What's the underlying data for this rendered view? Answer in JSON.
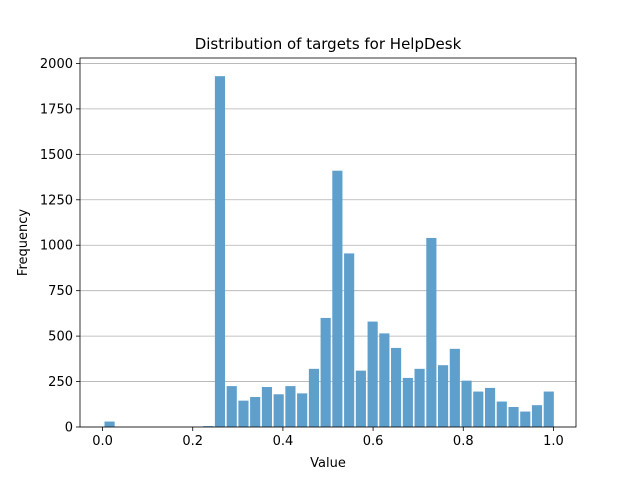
{
  "chart_data": {
    "type": "bar",
    "title": "Distribution of targets for HelpDesk",
    "xlabel": "Value",
    "ylabel": "Frequency",
    "xlim": [
      -0.05,
      1.05
    ],
    "ylim": [
      0,
      2030
    ],
    "x_ticks": [
      0.0,
      0.2,
      0.4,
      0.6,
      0.8,
      1.0
    ],
    "x_tick_labels": [
      "0.0",
      "0.2",
      "0.4",
      "0.6",
      "0.8",
      "1.0"
    ],
    "y_ticks": [
      0,
      250,
      500,
      750,
      1000,
      1250,
      1500,
      1750,
      2000
    ],
    "y_tick_labels": [
      "0",
      "250",
      "500",
      "750",
      "1000",
      "1250",
      "1500",
      "1750",
      "2000"
    ],
    "grid": "y-axis only",
    "bar_width": 0.0225,
    "bar_color": "#5f9fcc",
    "x": [
      0.0156,
      0.2344,
      0.2604,
      0.2865,
      0.3125,
      0.3385,
      0.3646,
      0.3906,
      0.4167,
      0.4427,
      0.4688,
      0.4948,
      0.5208,
      0.5469,
      0.5729,
      0.599,
      0.625,
      0.651,
      0.6771,
      0.7031,
      0.7292,
      0.7552,
      0.7813,
      0.8073,
      0.8333,
      0.8594,
      0.8854,
      0.9115,
      0.9375,
      0.9635,
      0.9896
    ],
    "values": [
      30,
      5,
      1930,
      225,
      145,
      165,
      220,
      180,
      225,
      185,
      320,
      600,
      1410,
      955,
      310,
      580,
      515,
      435,
      270,
      320,
      1040,
      340,
      430,
      255,
      195,
      215,
      140,
      110,
      85,
      120,
      195
    ]
  }
}
